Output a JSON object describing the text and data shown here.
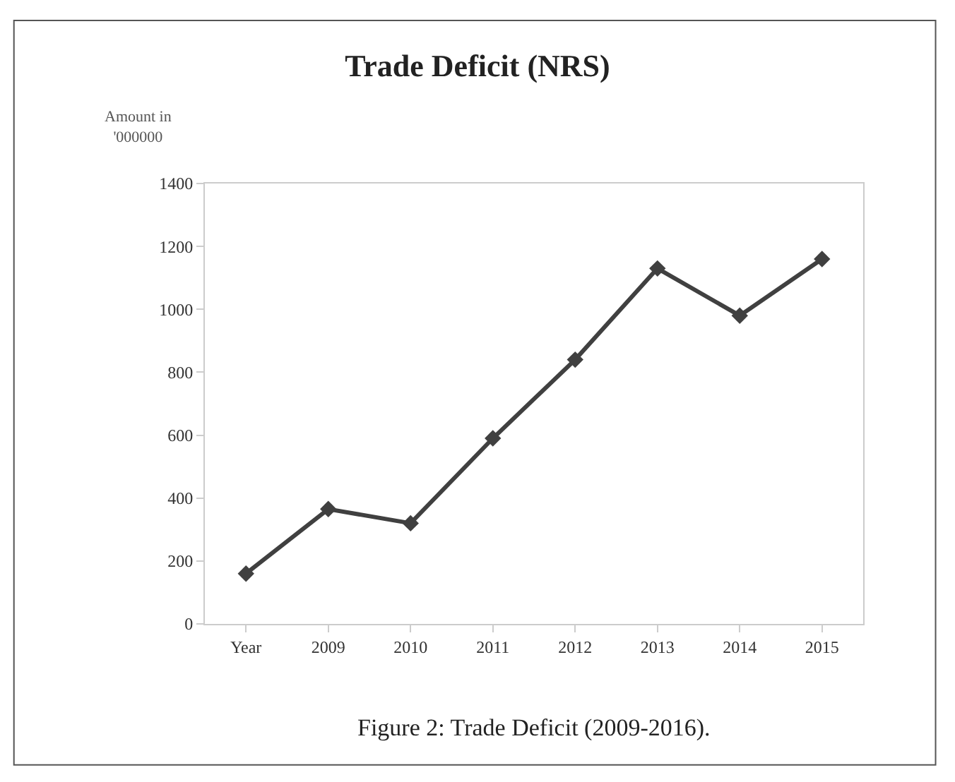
{
  "chart_data": {
    "type": "line",
    "title": "Trade Deficit (NRS)",
    "ylabel": "Amount in\n'000000",
    "categories": [
      "Year",
      "2009",
      "2010",
      "2011",
      "2012",
      "2013",
      "2014",
      "2015"
    ],
    "series": [
      {
        "color": "#404040",
        "values": [
          160,
          365,
          320,
          590,
          840,
          1130,
          980,
          1160
        ]
      }
    ],
    "ylim": [
      0,
      1400
    ],
    "yticks": [
      0,
      200,
      400,
      600,
      800,
      1000,
      1200,
      1400
    ],
    "legend": false,
    "marker": "diamond",
    "line_style": "solid",
    "annotations": [
      "Figure 2: Trade Deficit (2009-2016)."
    ]
  }
}
